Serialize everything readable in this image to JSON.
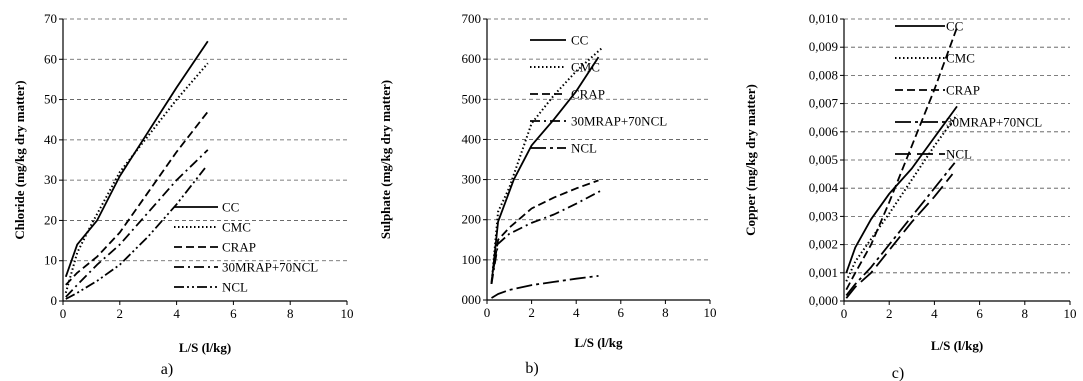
{
  "chart_data": [
    {
      "type": "line",
      "panel_label": "a)",
      "xlabel": "L/S (l/kg)",
      "ylabel": "Chloride (mg/kg dry matter)",
      "xlim": [
        0,
        10
      ],
      "ylim": [
        0,
        70
      ],
      "xticks": [
        "0",
        "2",
        "4",
        "6",
        "8",
        "10"
      ],
      "yticks": [
        "0",
        "10",
        "20",
        "30",
        "40",
        "50",
        "60",
        "70"
      ],
      "grid": "horizontal dashed",
      "legend_position": "bottom-right",
      "series": [
        {
          "name": "CC",
          "style": "solid",
          "x": [
            0.1,
            0.5,
            1.2,
            2.0,
            3.0,
            4.0,
            5.1
          ],
          "y": [
            6,
            14,
            20,
            31,
            42,
            53,
            64.5
          ]
        },
        {
          "name": "CMC",
          "style": "dotted",
          "x": [
            0.1,
            0.5,
            1.0,
            2.0,
            3.0,
            4.0,
            5.1
          ],
          "y": [
            2,
            12,
            19,
            32,
            41,
            50,
            59
          ]
        },
        {
          "name": "CRAP",
          "style": "dashed",
          "x": [
            0.1,
            0.5,
            1.2,
            2.0,
            3.0,
            4.0,
            5.1
          ],
          "y": [
            4,
            7,
            11,
            17,
            27,
            37,
            47
          ]
        },
        {
          "name": "30MRAP+70NCL",
          "style": "dashdot",
          "x": [
            0.1,
            0.5,
            1.2,
            2.0,
            3.0,
            4.0,
            5.1
          ],
          "y": [
            1,
            4,
            9,
            14,
            22,
            30,
            37.5
          ]
        },
        {
          "name": "NCL",
          "style": "dashdotdot",
          "x": [
            0.1,
            0.5,
            1.2,
            2.0,
            3.0,
            4.0,
            5.0
          ],
          "y": [
            0.5,
            2,
            5,
            9,
            16,
            24,
            33
          ]
        }
      ]
    },
    {
      "type": "line",
      "panel_label": "b)",
      "xlabel": "L/S (l/kg",
      "ylabel": "Sulphate (mg/kg dry matter)",
      "xlim": [
        0,
        10
      ],
      "ylim": [
        0,
        700
      ],
      "xticks": [
        "0",
        "2",
        "4",
        "6",
        "8",
        "10"
      ],
      "yticks": [
        "000",
        "100",
        "200",
        "300",
        "400",
        "500",
        "600",
        "700"
      ],
      "grid": "horizontal dashed",
      "legend_position": "top-right",
      "series": [
        {
          "name": "CC",
          "style": "solid",
          "x": [
            0.2,
            0.5,
            1.2,
            2.0,
            3.0,
            4.0,
            5.0
          ],
          "y": [
            40,
            195,
            300,
            385,
            450,
            520,
            605
          ]
        },
        {
          "name": "CMC",
          "style": "dotted",
          "x": [
            0.2,
            0.5,
            1.0,
            2.0,
            3.0,
            4.0,
            5.2
          ],
          "y": [
            40,
            220,
            280,
            440,
            510,
            570,
            630
          ]
        },
        {
          "name": "CRAP",
          "style": "dashed",
          "x": [
            0.2,
            0.5,
            1.0,
            2.0,
            3.0,
            4.0,
            5.0
          ],
          "y": [
            45,
            150,
            180,
            228,
            255,
            278,
            298
          ]
        },
        {
          "name": "30MRAP+70NCL",
          "style": "dashdot",
          "x": [
            0.2,
            0.5,
            1.0,
            2.0,
            3.0,
            4.0,
            5.2
          ],
          "y": [
            40,
            140,
            165,
            192,
            213,
            240,
            275
          ]
        },
        {
          "name": "NCL",
          "style": "longdashdot",
          "x": [
            0.2,
            0.5,
            1.0,
            2.0,
            3.0,
            4.0,
            5.0
          ],
          "y": [
            5,
            15,
            25,
            37,
            45,
            53,
            60
          ]
        }
      ]
    },
    {
      "type": "line",
      "panel_label": "c)",
      "xlabel": "L/S (l/kg)",
      "ylabel": "Copper (mg/kg dry matter)",
      "xlim": [
        0,
        10
      ],
      "ylim": [
        0,
        0.01
      ],
      "xticks": [
        "0",
        "2",
        "4",
        "6",
        "8",
        "10"
      ],
      "yticks": [
        "0,000",
        "0,001",
        "0,002",
        "0,003",
        "0,004",
        "0,005",
        "0,006",
        "0,007",
        "0,008",
        "0,009",
        "0,010"
      ],
      "grid": "horizontal dashed",
      "legend_position": "top-right",
      "series": [
        {
          "name": "CC",
          "style": "solid",
          "x": [
            0.1,
            0.5,
            1.2,
            2.0,
            3.0,
            4.0,
            5.0
          ],
          "y": [
            0.001,
            0.0019,
            0.0029,
            0.0038,
            0.0047,
            0.0058,
            0.0069
          ]
        },
        {
          "name": "CMC",
          "style": "dotted",
          "x": [
            0.1,
            0.5,
            1.2,
            2.0,
            3.0,
            4.0,
            5.0
          ],
          "y": [
            0.0007,
            0.0014,
            0.0022,
            0.0031,
            0.0043,
            0.0055,
            0.0066
          ]
        },
        {
          "name": "CRAP",
          "style": "dashed",
          "x": [
            0.1,
            0.5,
            1.2,
            2.0,
            3.0,
            4.0,
            5.0
          ],
          "y": [
            0.0004,
            0.001,
            0.002,
            0.0035,
            0.0055,
            0.0075,
            0.0097
          ]
        },
        {
          "name": "30MRAP+70NCL",
          "style": "longdashdot",
          "x": [
            0.1,
            0.5,
            1.2,
            2.0,
            3.0,
            4.0,
            4.9
          ],
          "y": [
            0.0002,
            0.0006,
            0.0012,
            0.002,
            0.003,
            0.004,
            0.0049
          ]
        },
        {
          "name": "NCL",
          "style": "longdash",
          "x": [
            0.1,
            0.5,
            1.2,
            2.0,
            3.0,
            4.0,
            4.8
          ],
          "y": [
            0.0001,
            0.0005,
            0.001,
            0.0018,
            0.0028,
            0.0037,
            0.0045
          ]
        }
      ]
    }
  ]
}
